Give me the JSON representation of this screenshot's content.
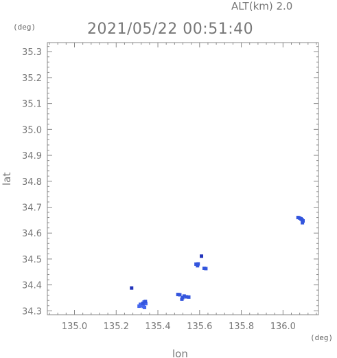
{
  "chart_data": {
    "type": "scatter",
    "altitude_label": "ALT(km) 2.0",
    "title": "2021/05/22 00:51:40",
    "xlabel": "lon",
    "ylabel": "lat",
    "x_unit": "(deg)",
    "y_unit": "(deg)",
    "xlim": [
      134.87,
      136.17
    ],
    "ylim": [
      34.285,
      35.335
    ],
    "x_ticks": [
      "135.0",
      "135.2",
      "135.4",
      "135.6",
      "135.8",
      "136.0"
    ],
    "y_ticks": [
      "34.3",
      "34.4",
      "34.5",
      "34.6",
      "34.7",
      "34.8",
      "34.9",
      "35.0",
      "35.1",
      "35.2",
      "35.3"
    ],
    "grid": false,
    "points": [
      {
        "lon": 135.274,
        "lat": 34.388,
        "color": "#2233bb"
      },
      {
        "lon": 135.316,
        "lat": 34.325,
        "color": "#4466ee"
      },
      {
        "lon": 135.322,
        "lat": 34.32,
        "color": "#4466ee"
      },
      {
        "lon": 135.33,
        "lat": 34.317,
        "color": "#4466ee"
      },
      {
        "lon": 135.336,
        "lat": 34.313,
        "color": "#4466ee"
      },
      {
        "lon": 135.334,
        "lat": 34.334,
        "color": "#4466ee"
      },
      {
        "lon": 135.342,
        "lat": 34.328,
        "color": "#4466ee"
      },
      {
        "lon": 135.31,
        "lat": 34.318,
        "color": "#4466ee"
      },
      {
        "lon": 135.328,
        "lat": 34.329,
        "color": "#3355dd"
      },
      {
        "lon": 135.34,
        "lat": 34.336,
        "color": "#3355dd"
      },
      {
        "lon": 135.496,
        "lat": 34.363,
        "color": "#3355dd"
      },
      {
        "lon": 135.505,
        "lat": 34.362,
        "color": "#3355dd"
      },
      {
        "lon": 135.515,
        "lat": 34.345,
        "color": "#3355dd"
      },
      {
        "lon": 135.519,
        "lat": 34.351,
        "color": "#3355dd"
      },
      {
        "lon": 135.526,
        "lat": 34.357,
        "color": "#3355dd"
      },
      {
        "lon": 135.537,
        "lat": 34.354,
        "color": "#3355dd"
      },
      {
        "lon": 135.548,
        "lat": 34.353,
        "color": "#3355dd"
      },
      {
        "lon": 135.583,
        "lat": 34.48,
        "color": "#3355dd"
      },
      {
        "lon": 135.59,
        "lat": 34.474,
        "color": "#3355dd"
      },
      {
        "lon": 135.593,
        "lat": 34.481,
        "color": "#3355dd"
      },
      {
        "lon": 135.609,
        "lat": 34.511,
        "color": "#2233bb"
      },
      {
        "lon": 135.622,
        "lat": 34.464,
        "color": "#3355dd"
      },
      {
        "lon": 135.63,
        "lat": 34.463,
        "color": "#3355dd"
      },
      {
        "lon": 136.072,
        "lat": 34.66,
        "color": "#3355dd"
      },
      {
        "lon": 136.08,
        "lat": 34.658,
        "color": "#3355dd"
      },
      {
        "lon": 136.086,
        "lat": 34.655,
        "color": "#3355dd"
      },
      {
        "lon": 136.091,
        "lat": 34.652,
        "color": "#3355dd"
      },
      {
        "lon": 136.096,
        "lat": 34.647,
        "color": "#3355dd"
      },
      {
        "lon": 136.093,
        "lat": 34.64,
        "color": "#3355dd"
      }
    ]
  }
}
